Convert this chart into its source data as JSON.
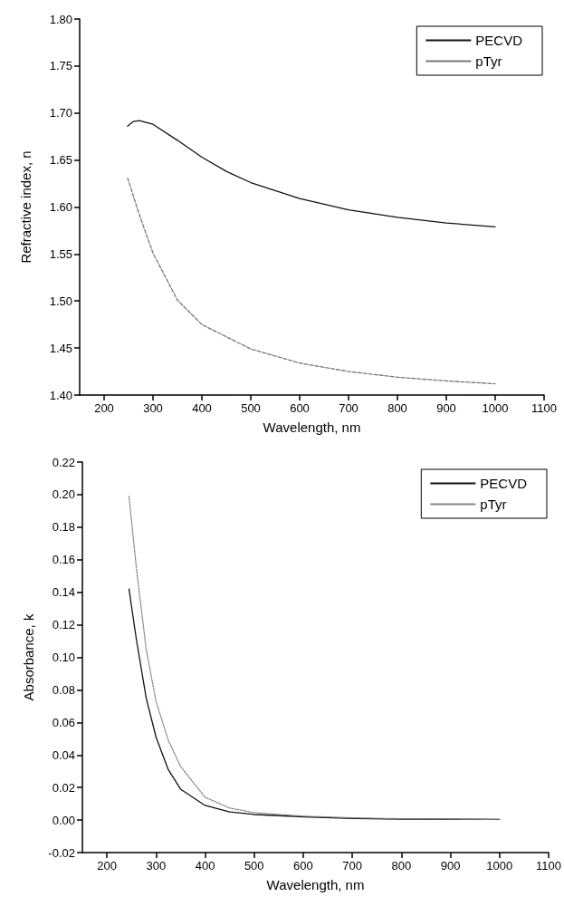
{
  "chart_data": [
    {
      "type": "line",
      "xlabel": "Wavelength, nm",
      "ylabel": "Refractive index, n",
      "xlim": [
        150,
        1100
      ],
      "xticks": [
        200,
        300,
        400,
        500,
        600,
        700,
        800,
        900,
        1000,
        1100
      ],
      "ylim": [
        1.4,
        1.8
      ],
      "yticks": [
        {
          "value": 1.4,
          "label": "1.40"
        },
        {
          "value": 1.45,
          "label": "1.45"
        },
        {
          "value": 1.5,
          "label": "1.50"
        },
        {
          "value": 1.55,
          "label": "1.55"
        },
        {
          "value": 1.6,
          "label": "1.60"
        },
        {
          "value": 1.65,
          "label": "1.65"
        },
        {
          "value": 1.7,
          "label": "1.70"
        },
        {
          "value": 1.75,
          "label": "1.75"
        },
        {
          "value": 1.8,
          "label": "1.80"
        }
      ],
      "legend": "top right",
      "grid": false,
      "marker": "none",
      "series": [
        {
          "name": "PECVD",
          "color": "#111111",
          "line_style": "solid",
          "x": [
            248,
            260,
            272,
            300,
            350,
            400,
            450,
            500,
            600,
            700,
            800,
            900,
            1000
          ],
          "values": [
            1.686,
            1.691,
            1.692,
            1.688,
            1.671,
            1.653,
            1.638,
            1.626,
            1.609,
            1.597,
            1.589,
            1.583,
            1.579
          ]
        },
        {
          "name": "pTyr",
          "color": "#777777",
          "line_style": "dashed",
          "x": [
            248,
            270,
            300,
            350,
            400,
            450,
            500,
            600,
            700,
            800,
            900,
            1000
          ],
          "values": [
            1.631,
            1.595,
            1.551,
            1.501,
            1.475,
            1.462,
            1.449,
            1.434,
            1.425,
            1.419,
            1.415,
            1.412
          ]
        }
      ]
    },
    {
      "type": "line",
      "xlabel": "Wavelength, nm",
      "ylabel": "Absorbance, k",
      "xlim": [
        150,
        1100
      ],
      "xticks": [
        200,
        300,
        400,
        500,
        600,
        700,
        800,
        900,
        1000,
        1100
      ],
      "ylim": [
        -0.02,
        0.22
      ],
      "yticks": [
        {
          "value": -0.02,
          "label": "-0.02"
        },
        {
          "value": 0,
          "label": "0.00"
        },
        {
          "value": 0.02,
          "label": "0.02"
        },
        {
          "value": 0.04,
          "label": "0.04"
        },
        {
          "value": 0.06,
          "label": "0.06"
        },
        {
          "value": 0.08,
          "label": "0.08"
        },
        {
          "value": 0.1,
          "label": "0.10"
        },
        {
          "value": 0.12,
          "label": "0.12"
        },
        {
          "value": 0.14,
          "label": "0.14"
        },
        {
          "value": 0.16,
          "label": "0.16"
        },
        {
          "value": 0.18,
          "label": "0.18"
        },
        {
          "value": 0.2,
          "label": "0.20"
        },
        {
          "value": 0.22,
          "label": "0.22"
        }
      ],
      "legend": "top right",
      "grid": false,
      "marker": "none",
      "series": [
        {
          "name": "PECVD",
          "color": "#111111",
          "line_style": "solid",
          "x": [
            245,
            260,
            280,
            300,
            325,
            350,
            400,
            450,
            500,
            600,
            700,
            800,
            1000
          ],
          "values": [
            0.142,
            0.111,
            0.075,
            0.051,
            0.031,
            0.019,
            0.009,
            0.005,
            0.0034,
            0.002,
            0.001,
            0.0006,
            0.0004
          ]
        },
        {
          "name": "pTyr",
          "color": "#888888",
          "line_style": "dotted",
          "x": [
            245,
            260,
            280,
            300,
            325,
            350,
            400,
            450,
            500,
            600,
            700,
            800,
            1000
          ],
          "values": [
            0.199,
            0.155,
            0.105,
            0.073,
            0.049,
            0.033,
            0.014,
            0.0074,
            0.0046,
            0.0024,
            0.0014,
            0.0008,
            0.0004
          ]
        }
      ]
    }
  ]
}
